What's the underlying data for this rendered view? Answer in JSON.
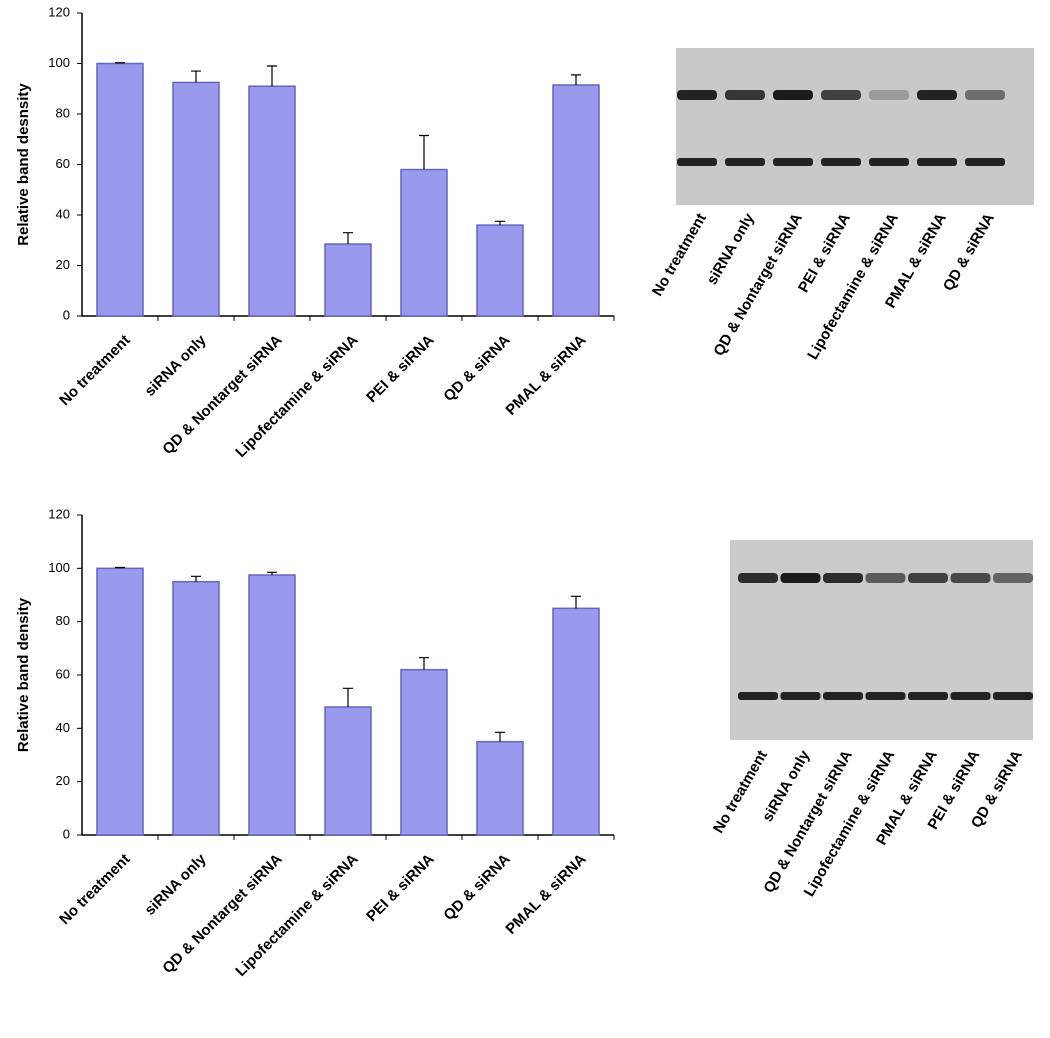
{
  "chart_data": [
    {
      "type": "bar",
      "ylabel": "Relative band desnsity",
      "categories": [
        "No treatment",
        "siRNA only",
        "QD & Nontarget siRNA",
        "Lipofectamine & siRNA",
        "PEI & siRNA",
        "QD & siRNA",
        "PMAL & siRNA"
      ],
      "values": [
        100,
        92.5,
        91,
        28.5,
        58,
        36,
        91.5
      ],
      "errors": [
        0.3,
        4.5,
        8,
        4.5,
        13.5,
        1.5,
        4
      ],
      "color": "#9999ee",
      "ylim": [
        0,
        120
      ],
      "yticks": [
        0,
        20,
        40,
        60,
        80,
        100,
        120
      ]
    },
    {
      "type": "bar",
      "ylabel": "Relative band density",
      "categories": [
        "No treatment",
        "siRNA only",
        "QD & Nontarget siRNA",
        "Lipofectamine & siRNA",
        "PEI & siRNA",
        "QD & siRNA",
        "PMAL & siRNA"
      ],
      "values": [
        100,
        95,
        97.5,
        48,
        62,
        35,
        85
      ],
      "errors": [
        0.3,
        2,
        1,
        7,
        4.5,
        3.5,
        4.5
      ],
      "color": "#9999ee",
      "ylim": [
        0,
        120
      ],
      "yticks": [
        0,
        20,
        40,
        60,
        80,
        100,
        120
      ]
    }
  ],
  "blots": [
    {
      "lanes": [
        "No treatment",
        "siRNA only",
        "QD & Nontarget siRNA",
        "PEI & siRNA",
        "Lipofectamine & siRNA",
        "PMAL & siRNA",
        "QD & siRNA"
      ]
    },
    {
      "lanes": [
        "No treatment",
        "siRNA only",
        "QD & Nontarget siRNA",
        "Lipofectamine & siRNA",
        "PMAL & siRNA",
        "PEI & siRNA",
        "QD & siRNA"
      ]
    }
  ]
}
